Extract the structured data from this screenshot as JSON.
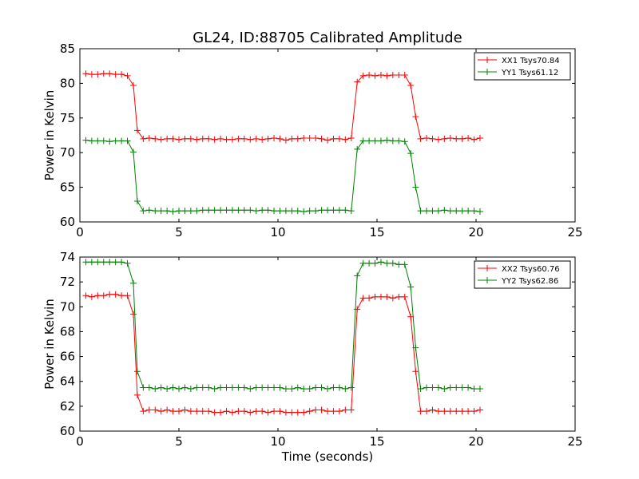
{
  "figure_title": "GL24, ID:88705 Calibrated Amplitude",
  "chart_data": [
    {
      "type": "line",
      "title": "GL24, ID:88705 Calibrated Amplitude",
      "xlabel": "",
      "ylabel": "Power in Kelvin",
      "xlim": [
        0,
        25
      ],
      "ylim": [
        60,
        85
      ],
      "xticks": [
        "0",
        "5",
        "10",
        "15",
        "20",
        "25"
      ],
      "yticks": [
        "60",
        "65",
        "70",
        "75",
        "80",
        "85"
      ],
      "grid": false,
      "legend_position": "top-right",
      "x": [
        0.3,
        0.6,
        0.9,
        1.2,
        1.5,
        1.8,
        2.1,
        2.4,
        2.7,
        2.9,
        3.2,
        3.5,
        3.8,
        4.1,
        4.4,
        4.7,
        5.0,
        5.3,
        5.6,
        5.9,
        6.2,
        6.5,
        6.8,
        7.1,
        7.4,
        7.7,
        8.0,
        8.3,
        8.6,
        8.9,
        9.2,
        9.5,
        9.8,
        10.1,
        10.4,
        10.7,
        11.0,
        11.3,
        11.6,
        11.9,
        12.2,
        12.5,
        12.8,
        13.1,
        13.4,
        13.7,
        14.0,
        14.3,
        14.6,
        14.9,
        15.2,
        15.5,
        15.8,
        16.1,
        16.4,
        16.7,
        16.95,
        17.2,
        17.5,
        17.8,
        18.1,
        18.4,
        18.7,
        19.0,
        19.3,
        19.6,
        19.9,
        20.2
      ],
      "series": [
        {
          "name": "XX1 Tsys70.84",
          "color": "#ff0000",
          "values": [
            81.4,
            81.3,
            81.3,
            81.4,
            81.4,
            81.3,
            81.3,
            81.1,
            79.7,
            73.2,
            72.0,
            72.1,
            72.0,
            71.9,
            72.0,
            72.0,
            71.9,
            72.0,
            72.0,
            71.9,
            72.0,
            72.0,
            71.9,
            72.0,
            71.9,
            71.9,
            72.0,
            72.0,
            71.9,
            72.0,
            71.9,
            72.0,
            72.1,
            72.0,
            71.8,
            72.0,
            72.0,
            72.1,
            72.1,
            72.1,
            72.0,
            71.8,
            72.0,
            72.0,
            71.9,
            72.1,
            80.2,
            81.1,
            81.2,
            81.1,
            81.2,
            81.1,
            81.2,
            81.2,
            81.2,
            79.7,
            75.2,
            72.0,
            72.1,
            72.0,
            71.9,
            72.0,
            72.1,
            72.0,
            72.0,
            72.1,
            71.9,
            72.1
          ]
        },
        {
          "name": "YY1 Tsys61.12",
          "color": "#008000",
          "values": [
            71.8,
            71.7,
            71.7,
            71.7,
            71.6,
            71.7,
            71.7,
            71.7,
            70.1,
            63.0,
            61.6,
            61.7,
            61.6,
            61.6,
            61.6,
            61.5,
            61.6,
            61.6,
            61.6,
            61.6,
            61.7,
            61.7,
            61.7,
            61.7,
            61.7,
            61.7,
            61.7,
            61.7,
            61.7,
            61.6,
            61.7,
            61.7,
            61.6,
            61.6,
            61.6,
            61.6,
            61.6,
            61.5,
            61.6,
            61.6,
            61.7,
            61.7,
            61.7,
            61.7,
            61.7,
            61.6,
            70.5,
            71.7,
            71.7,
            71.7,
            71.7,
            71.8,
            71.7,
            71.7,
            71.6,
            69.9,
            65.0,
            61.6,
            61.6,
            61.6,
            61.6,
            61.7,
            61.6,
            61.6,
            61.6,
            61.6,
            61.6,
            61.5
          ]
        }
      ]
    },
    {
      "type": "line",
      "title": "",
      "xlabel": "Time (seconds)",
      "ylabel": "Power in Kelvin",
      "xlim": [
        0,
        25
      ],
      "ylim": [
        60,
        74
      ],
      "xticks": [
        "0",
        "5",
        "10",
        "15",
        "20",
        "25"
      ],
      "yticks": [
        "60",
        "62",
        "64",
        "66",
        "68",
        "70",
        "72",
        "74"
      ],
      "grid": false,
      "legend_position": "top-right",
      "x": [
        0.3,
        0.6,
        0.9,
        1.2,
        1.5,
        1.8,
        2.1,
        2.4,
        2.7,
        2.9,
        3.2,
        3.5,
        3.8,
        4.1,
        4.4,
        4.7,
        5.0,
        5.3,
        5.6,
        5.9,
        6.2,
        6.5,
        6.8,
        7.1,
        7.4,
        7.7,
        8.0,
        8.3,
        8.6,
        8.9,
        9.2,
        9.5,
        9.8,
        10.1,
        10.4,
        10.7,
        11.0,
        11.3,
        11.6,
        11.9,
        12.2,
        12.5,
        12.8,
        13.1,
        13.4,
        13.7,
        14.0,
        14.3,
        14.6,
        14.9,
        15.2,
        15.5,
        15.8,
        16.1,
        16.4,
        16.7,
        16.95,
        17.2,
        17.5,
        17.8,
        18.1,
        18.4,
        18.7,
        19.0,
        19.3,
        19.6,
        19.9,
        20.2
      ],
      "series": [
        {
          "name": "XX2 Tsys60.76",
          "color": "#ff0000",
          "values": [
            70.9,
            70.8,
            70.9,
            70.9,
            71.0,
            71.0,
            70.9,
            70.9,
            69.4,
            62.9,
            61.6,
            61.7,
            61.7,
            61.6,
            61.7,
            61.6,
            61.6,
            61.7,
            61.6,
            61.6,
            61.6,
            61.6,
            61.5,
            61.5,
            61.6,
            61.5,
            61.6,
            61.6,
            61.5,
            61.6,
            61.6,
            61.5,
            61.6,
            61.6,
            61.5,
            61.5,
            61.5,
            61.5,
            61.6,
            61.7,
            61.7,
            61.6,
            61.6,
            61.6,
            61.7,
            61.7,
            69.8,
            70.7,
            70.7,
            70.8,
            70.8,
            70.8,
            70.7,
            70.8,
            70.8,
            69.2,
            64.8,
            61.6,
            61.6,
            61.7,
            61.6,
            61.6,
            61.6,
            61.6,
            61.6,
            61.6,
            61.6,
            61.7
          ]
        },
        {
          "name": "YY2 Tsys62.86",
          "color": "#008000",
          "values": [
            73.6,
            73.6,
            73.6,
            73.6,
            73.6,
            73.6,
            73.6,
            73.5,
            71.9,
            64.8,
            63.5,
            63.5,
            63.4,
            63.5,
            63.4,
            63.5,
            63.4,
            63.5,
            63.4,
            63.5,
            63.5,
            63.5,
            63.4,
            63.5,
            63.5,
            63.5,
            63.5,
            63.5,
            63.4,
            63.5,
            63.5,
            63.5,
            63.5,
            63.5,
            63.4,
            63.4,
            63.5,
            63.4,
            63.4,
            63.5,
            63.5,
            63.4,
            63.5,
            63.5,
            63.4,
            63.5,
            72.5,
            73.5,
            73.5,
            73.5,
            73.6,
            73.5,
            73.5,
            73.4,
            73.4,
            71.6,
            66.7,
            63.4,
            63.5,
            63.5,
            63.5,
            63.4,
            63.5,
            63.5,
            63.5,
            63.5,
            63.4,
            63.4
          ]
        }
      ]
    }
  ]
}
